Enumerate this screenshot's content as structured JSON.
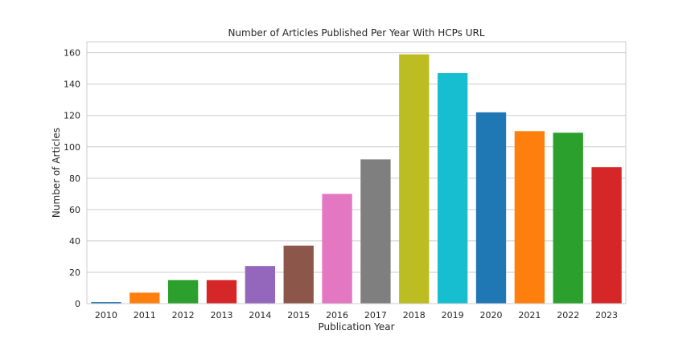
{
  "chart_data": {
    "type": "bar",
    "title": "Number of Articles Published Per Year With HCPs URL",
    "xlabel": "Publication Year",
    "ylabel": "Number of Articles",
    "categories": [
      "2010",
      "2011",
      "2012",
      "2013",
      "2014",
      "2015",
      "2016",
      "2017",
      "2018",
      "2019",
      "2020",
      "2021",
      "2022",
      "2023"
    ],
    "values": [
      1,
      7,
      15,
      15,
      24,
      37,
      70,
      92,
      159,
      147,
      122,
      110,
      109,
      87
    ],
    "ylim": [
      0,
      167
    ],
    "yticks": [
      0,
      20,
      40,
      60,
      80,
      100,
      120,
      140,
      160
    ],
    "grid": "horizontal",
    "colors": [
      "#1f77b4",
      "#ff7f0e",
      "#2ca02c",
      "#d62728",
      "#9467bd",
      "#8c564b",
      "#e377c2",
      "#7f7f7f",
      "#bcbd22",
      "#17becf",
      "#1f77b4",
      "#ff7f0e",
      "#2ca02c",
      "#d62728"
    ]
  }
}
